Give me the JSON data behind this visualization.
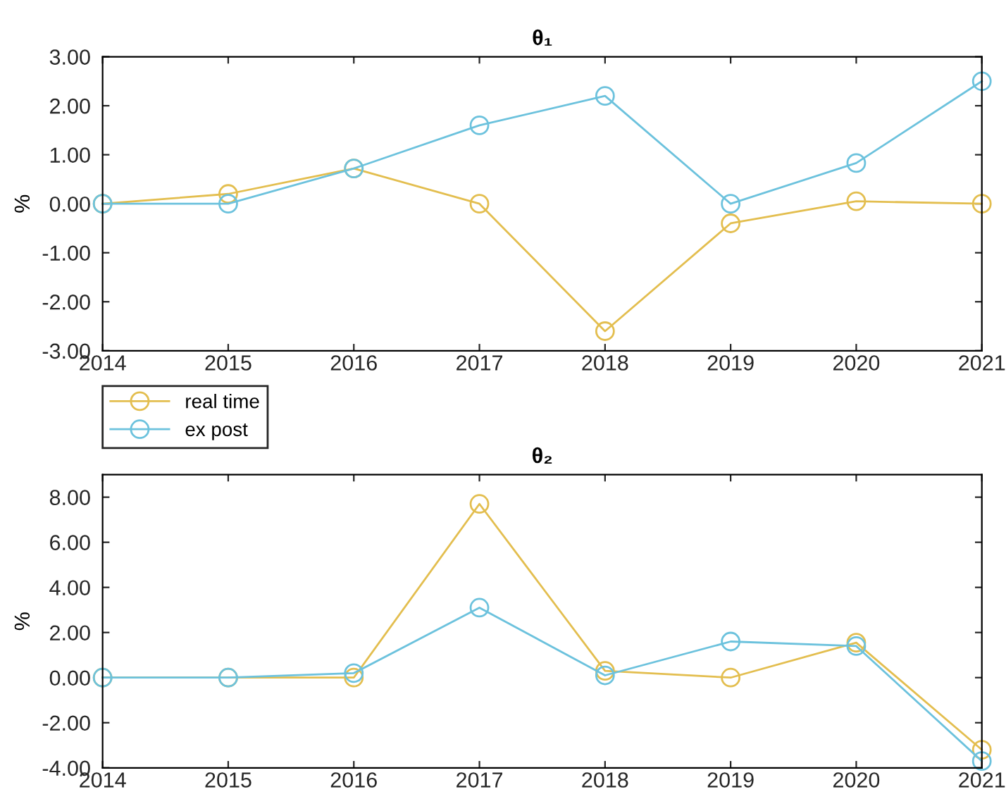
{
  "chart_data": [
    {
      "type": "line",
      "title": "θ₁",
      "ylabel": "%",
      "x": [
        2014,
        2015,
        2016,
        2017,
        2018,
        2019,
        2020,
        2021
      ],
      "marker": "circle",
      "line_style": "solid",
      "grid": false,
      "legend": "bottom left",
      "xlim": [
        2014,
        2021
      ],
      "xticks": [
        2014,
        2015,
        2016,
        2017,
        2018,
        2019,
        2020,
        2021
      ],
      "ylim": [
        -3,
        3
      ],
      "yticks": [
        {
          "value": -3,
          "label": "-3.00"
        },
        {
          "value": -2,
          "label": "-2.00"
        },
        {
          "value": -1,
          "label": "-1.00"
        },
        {
          "value": 0,
          "label": "0.00"
        },
        {
          "value": 1,
          "label": "1.00"
        },
        {
          "value": 2,
          "label": "2.00"
        },
        {
          "value": 3,
          "label": "3.00"
        }
      ],
      "series": [
        {
          "name": "real time",
          "color": "#e3be4f",
          "values": [
            0,
            0.2,
            0.72,
            0,
            -2.6,
            -0.4,
            0.05,
            0
          ]
        },
        {
          "name": "ex post",
          "color": "#6cc2dd",
          "values": [
            0,
            0,
            0.72,
            1.6,
            2.2,
            0,
            0.83,
            2.5
          ]
        }
      ]
    },
    {
      "type": "line",
      "title": "θ₂",
      "ylabel": "%",
      "x": [
        2014,
        2015,
        2016,
        2017,
        2018,
        2019,
        2020,
        2021
      ],
      "marker": "circle",
      "line_style": "solid",
      "grid": false,
      "xlim": [
        2014,
        2021
      ],
      "xticks": [
        2014,
        2015,
        2016,
        2017,
        2018,
        2019,
        2020,
        2021
      ],
      "ylim": [
        -4,
        9
      ],
      "yticks": [
        {
          "value": -4,
          "label": "-4.00"
        },
        {
          "value": -2,
          "label": "-2.00"
        },
        {
          "value": 0,
          "label": "0.00"
        },
        {
          "value": 2,
          "label": "2.00"
        },
        {
          "value": 4,
          "label": "4.00"
        },
        {
          "value": 6,
          "label": "6.00"
        },
        {
          "value": 8,
          "label": "8.00"
        }
      ],
      "series": [
        {
          "color": "#e3be4f",
          "values": [
            0,
            0,
            0,
            7.7,
            0.3,
            0,
            1.55,
            -3.2
          ]
        },
        {
          "color": "#6cc2dd",
          "values": [
            0,
            0,
            0.2,
            3.1,
            0.1,
            1.6,
            1.4,
            -3.7
          ]
        }
      ]
    }
  ]
}
